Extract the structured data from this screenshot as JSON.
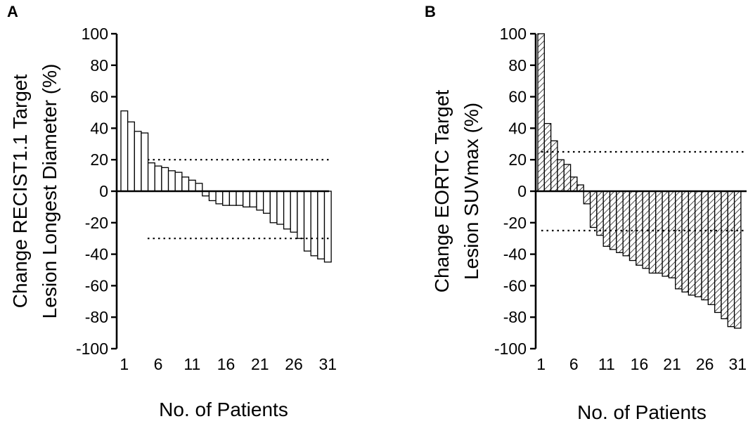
{
  "chart_data": [
    {
      "panel": "A",
      "type": "bar",
      "title": "",
      "ylabel_lines": [
        "Change RECIST1.1 Target",
        "Lesion Longest Diameter (%)"
      ],
      "xlabel": "No. of Patients",
      "ylim": [
        -100,
        100
      ],
      "yticks": [
        100,
        80,
        60,
        40,
        20,
        0,
        -20,
        -40,
        -60,
        -80,
        -100
      ],
      "xticks": [
        1,
        6,
        11,
        16,
        21,
        26,
        31
      ],
      "thresholds": [
        20,
        -30
      ],
      "fill": "open",
      "x": [
        1,
        2,
        3,
        4,
        5,
        6,
        7,
        8,
        9,
        10,
        11,
        12,
        13,
        14,
        15,
        16,
        17,
        18,
        19,
        20,
        21,
        22,
        23,
        24,
        25,
        26,
        27,
        28,
        29,
        30,
        31
      ],
      "values": [
        51,
        44,
        38,
        37,
        18,
        16,
        15,
        13,
        12,
        9,
        7,
        5,
        -3,
        -6,
        -8,
        -9,
        -9,
        -9,
        -10,
        -10,
        -12,
        -14,
        -20,
        -21,
        -24,
        -26,
        -30,
        -38,
        -41,
        -43,
        -45
      ]
    },
    {
      "panel": "B",
      "type": "bar",
      "title": "",
      "ylabel_lines": [
        "Change EORTC Target",
        "Lesion SUVmax (%)"
      ],
      "xlabel": "No. of Patients",
      "ylim": [
        -100,
        100
      ],
      "yticks": [
        100,
        80,
        60,
        40,
        20,
        0,
        -20,
        -40,
        -60,
        -80,
        -100
      ],
      "xticks": [
        1,
        6,
        11,
        16,
        21,
        26,
        31
      ],
      "thresholds": [
        25,
        -25
      ],
      "fill": "hatched",
      "x": [
        1,
        2,
        3,
        4,
        5,
        6,
        7,
        8,
        9,
        10,
        11,
        12,
        13,
        14,
        15,
        16,
        17,
        18,
        19,
        20,
        21,
        22,
        23,
        24,
        25,
        26,
        27,
        28,
        29,
        30,
        31
      ],
      "values": [
        100,
        43,
        32,
        20,
        17,
        9,
        4,
        -8,
        -23,
        -28,
        -35,
        -37,
        -39,
        -41,
        -44,
        -47,
        -49,
        -52,
        -52,
        -54,
        -55,
        -62,
        -64,
        -66,
        -67,
        -69,
        -72,
        -77,
        -81,
        -86,
        -87
      ]
    }
  ]
}
